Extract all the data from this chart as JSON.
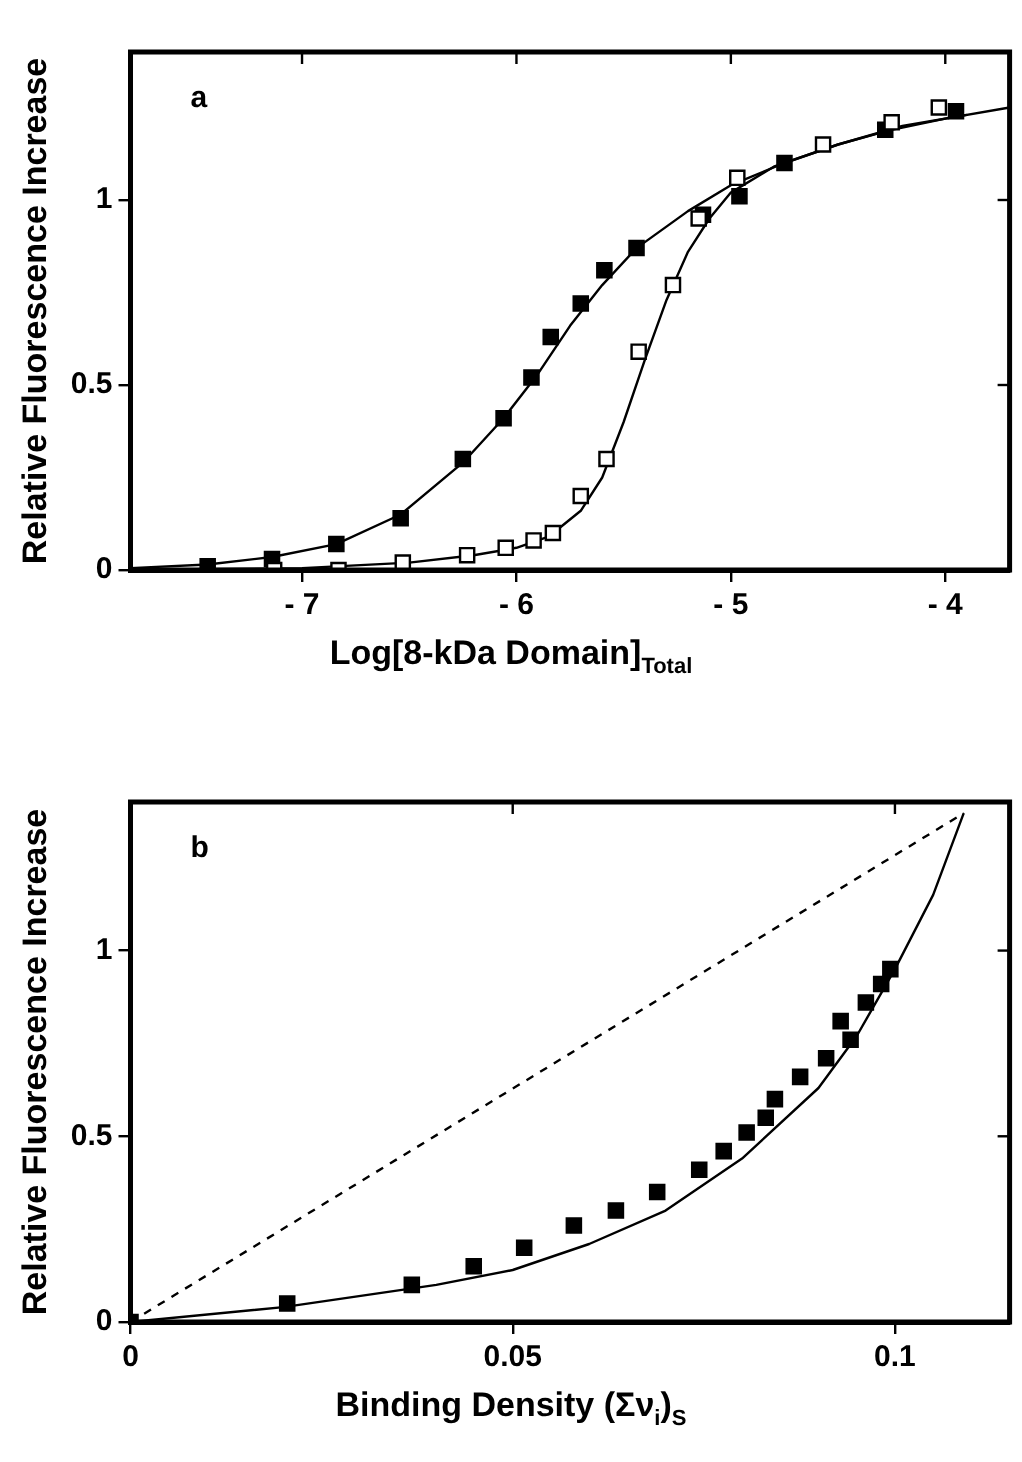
{
  "chart_data": [
    {
      "type": "scatter",
      "xlabel": "Log[8-kDa Domain]$_{Total}$",
      "ylabel": "Relative Fluorescence Increase",
      "annotations": [
        "a"
      ],
      "xlim": [
        -7.8,
        -3.7
      ],
      "xticks": [
        -7,
        -6,
        -5,
        -4
      ],
      "ylim": [
        0,
        1.4
      ],
      "yticks": [
        0,
        0.5,
        1
      ],
      "grid": false,
      "legend": false,
      "series": [
        {
          "marker": "square",
          "color": "#000000",
          "x": [
            -7.44,
            -7.14,
            -6.84,
            -6.54,
            -6.25,
            -6.06,
            -5.93,
            -5.84,
            -5.7,
            -5.59,
            -5.44,
            -5.13,
            -4.96,
            -4.75,
            -4.28,
            -3.95
          ],
          "values": [
            0.01,
            0.03,
            0.07,
            0.14,
            0.3,
            0.41,
            0.52,
            0.63,
            0.72,
            0.81,
            0.87,
            0.96,
            1.01,
            1.1,
            1.19,
            1.24
          ]
        },
        {
          "marker": "square",
          "color": "#ffffff",
          "x": [
            -7.13,
            -6.83,
            -6.53,
            -6.23,
            -6.05,
            -5.92,
            -5.83,
            -5.7,
            -5.58,
            -5.43,
            -5.27,
            -5.15,
            -4.97,
            -4.57,
            -4.25,
            -4.03
          ],
          "values": [
            0,
            0,
            0.02,
            0.04,
            0.06,
            0.08,
            0.1,
            0.2,
            0.3,
            0.59,
            0.77,
            0.95,
            1.06,
            1.15,
            1.21,
            1.25
          ]
        },
        {
          "type": "line",
          "marker": "none",
          "line_style": "solid",
          "color": "#000000",
          "x": [
            -7.8,
            -7.44,
            -7.14,
            -6.84,
            -6.54,
            -6.25,
            -6.06,
            -5.9,
            -5.75,
            -5.6,
            -5.44,
            -5.2,
            -5.0,
            -4.75,
            -4.5,
            -4.25,
            -4.0,
            -3.7
          ],
          "values": [
            0.005,
            0.015,
            0.035,
            0.07,
            0.15,
            0.29,
            0.41,
            0.53,
            0.66,
            0.77,
            0.87,
            0.97,
            1.04,
            1.1,
            1.15,
            1.19,
            1.22,
            1.25
          ]
        },
        {
          "type": "line",
          "marker": "none",
          "line_style": "solid",
          "color": "#000000",
          "x": [
            -7.5,
            -7.0,
            -6.5,
            -6.2,
            -6.0,
            -5.85,
            -5.7,
            -5.6,
            -5.5,
            -5.4,
            -5.3,
            -5.2,
            -5.1,
            -5.0,
            -4.8,
            -4.5,
            -4.2,
            -3.9
          ],
          "values": [
            0.002,
            0.005,
            0.02,
            0.04,
            0.06,
            0.09,
            0.16,
            0.25,
            0.4,
            0.57,
            0.73,
            0.86,
            0.95,
            1.02,
            1.09,
            1.15,
            1.2,
            1.23
          ]
        }
      ]
    },
    {
      "type": "scatter",
      "xlabel": "Binding Density (Σν$_{i}$)$_{S}$",
      "ylabel": "Relative Fluorescence Increase",
      "annotations": [
        "b"
      ],
      "xlim": [
        0,
        0.115
      ],
      "xticks": [
        0,
        0.05,
        0.1
      ],
      "ylim": [
        0,
        1.4
      ],
      "yticks": [
        0,
        0.5,
        1
      ],
      "grid": false,
      "legend": false,
      "series": [
        {
          "marker": "square",
          "color": "#000000",
          "x": [
            0,
            0.0205,
            0.0368,
            0.0449,
            0.0515,
            0.058,
            0.0635,
            0.0689,
            0.0744,
            0.0776,
            0.0806,
            0.0831,
            0.0843,
            0.0876,
            0.091,
            0.0929,
            0.0942,
            0.0962,
            0.0982,
            0.0994
          ],
          "values": [
            0,
            0.05,
            0.1,
            0.15,
            0.2,
            0.26,
            0.3,
            0.35,
            0.41,
            0.46,
            0.51,
            0.55,
            0.6,
            0.66,
            0.71,
            0.81,
            0.76,
            0.86,
            0.91,
            0.95
          ]
        },
        {
          "type": "line",
          "marker": "none",
          "line_style": "solid",
          "color": "#000000",
          "x": [
            0,
            0.02,
            0.04,
            0.05,
            0.06,
            0.07,
            0.08,
            0.09,
            0.095,
            0.1,
            0.105,
            0.109
          ],
          "values": [
            0,
            0.04,
            0.1,
            0.14,
            0.21,
            0.3,
            0.44,
            0.63,
            0.77,
            0.95,
            1.15,
            1.37
          ]
        },
        {
          "type": "line",
          "marker": "none",
          "line_style": "dashed",
          "color": "#000000",
          "x": [
            0,
            0.109
          ],
          "values": [
            0,
            1.37
          ]
        }
      ]
    }
  ]
}
